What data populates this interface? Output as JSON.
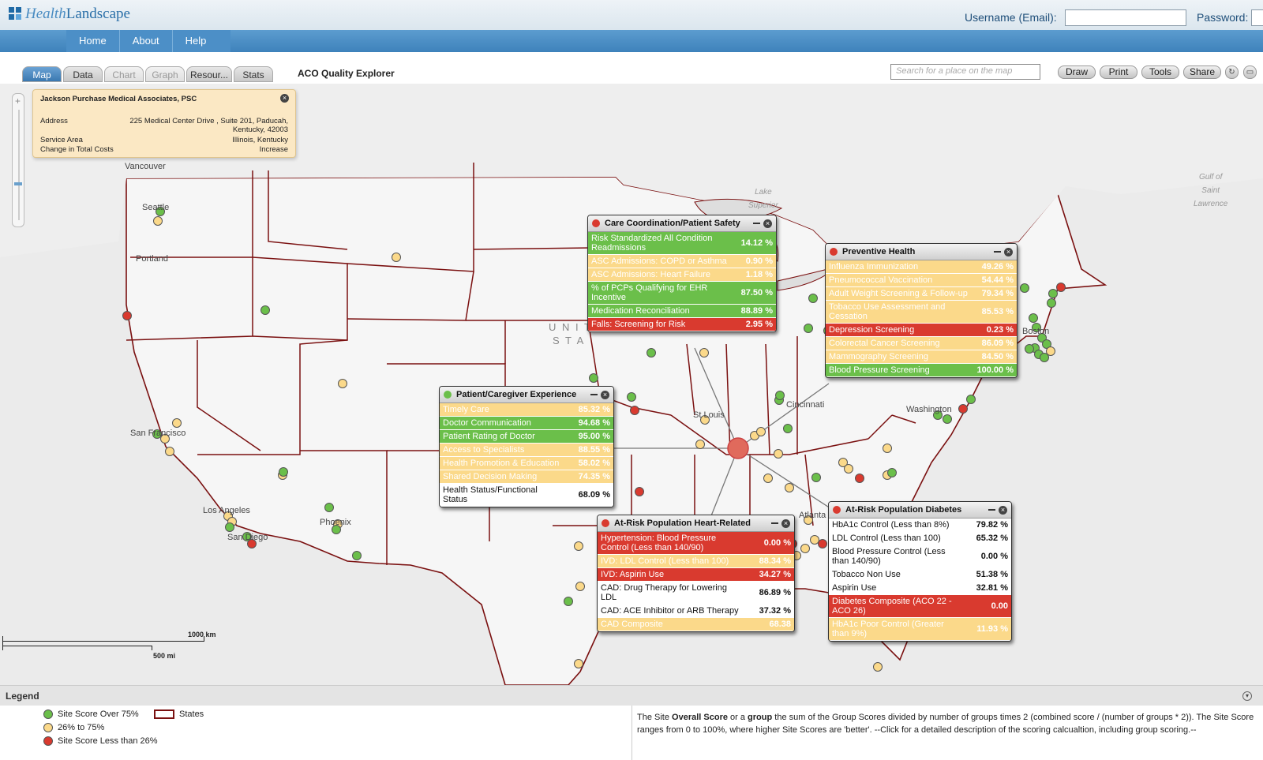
{
  "header": {
    "logo_text_a": "Health",
    "logo_text_b": "Landscape",
    "username_label": "Username (Email):",
    "password_label": "Password:"
  },
  "nav": [
    "Home",
    "About",
    "Help"
  ],
  "tabs": [
    {
      "label": "Map",
      "state": "active"
    },
    {
      "label": "Data",
      "state": "normal"
    },
    {
      "label": "Chart",
      "state": "disabled"
    },
    {
      "label": "Graph",
      "state": "disabled"
    },
    {
      "label": "Resour...",
      "state": "normal"
    },
    {
      "label": "Stats",
      "state": "normal"
    }
  ],
  "app_title": "ACO Quality Explorer",
  "search": {
    "placeholder": "Search for a place on the map"
  },
  "tools": [
    "Draw",
    "Print",
    "Tools",
    "Share"
  ],
  "map_labels": {
    "vancouver": "Vancouver",
    "seattle": "Seattle",
    "portland": "Portland",
    "sanfrancisco": "San Francisco",
    "losangeles": "Los Angeles",
    "sandiego": "San Diego",
    "phoenix": "Phoenix",
    "stlouis": "St Louis",
    "cincinnati": "Cincinnati",
    "washington": "Washington",
    "atlanta": "Atlanta",
    "boston": "Boston",
    "united": "U N I T",
    "states": "S T A"
  },
  "water_labels": {
    "lake": "Lake\nSuperior",
    "gulf": "Gulf of\nSaint\nLawrence"
  },
  "info_box": {
    "title": "Jackson Purchase Medical Associates, PSC",
    "rows": [
      {
        "k": "Address",
        "v": "225 Medical Center Drive , Suite 201, Paducah, Kentucky, 42003"
      },
      {
        "k": "Service Area",
        "v": "Illinois, Kentucky"
      },
      {
        "k": "Change in Total Costs",
        "v": "Increase"
      }
    ]
  },
  "panels": [
    {
      "id": "care",
      "title": "Care Coordination/Patient Safety",
      "dot": "#d93a2f",
      "rows": [
        {
          "m": "Risk Standardized All Condition Readmissions",
          "v": "14.12 %",
          "c": "g"
        },
        {
          "m": "ASC Admissions: COPD or Asthma",
          "v": "0.90 %",
          "c": "y"
        },
        {
          "m": "ASC Admissions: Heart Failure",
          "v": "1.18 %",
          "c": "y"
        },
        {
          "m": "% of PCPs Qualifying for EHR Incentive",
          "v": "87.50 %",
          "c": "g"
        },
        {
          "m": "Medication Reconciliation",
          "v": "88.89 %",
          "c": "g"
        },
        {
          "m": "Falls: Screening for Risk",
          "v": "2.95 %",
          "c": "r"
        }
      ]
    },
    {
      "id": "prev",
      "title": "Preventive Health",
      "dot": "#d93a2f",
      "rows": [
        {
          "m": "Influenza Immunization",
          "v": "49.26 %",
          "c": "y"
        },
        {
          "m": "Pneumococcal Vaccination",
          "v": "54.44 %",
          "c": "y"
        },
        {
          "m": "Adult Weight Screening & Follow-up",
          "v": "79.34 %",
          "c": "y"
        },
        {
          "m": "Tobacco Use Assessment and Cessation",
          "v": "85.53 %",
          "c": "y"
        },
        {
          "m": "Depression Screening",
          "v": "0.23 %",
          "c": "r"
        },
        {
          "m": "Colorectal Cancer Screening",
          "v": "86.09 %",
          "c": "y"
        },
        {
          "m": "Mammography Screening",
          "v": "84.50 %",
          "c": "y"
        },
        {
          "m": "Blood Pressure Screening",
          "v": "100.00 %",
          "c": "g"
        }
      ]
    },
    {
      "id": "pce",
      "title": "Patient/Caregiver Experience",
      "dot": "#6bbf4a",
      "rows": [
        {
          "m": "Timely Care",
          "v": "85.32 %",
          "c": "y"
        },
        {
          "m": "Doctor Communication",
          "v": "94.68 %",
          "c": "g"
        },
        {
          "m": "Patient Rating of Doctor",
          "v": "95.00 %",
          "c": "g"
        },
        {
          "m": "Access to Specialists",
          "v": "88.55 %",
          "c": "y"
        },
        {
          "m": "Health Promotion & Education",
          "v": "58.02 %",
          "c": "y"
        },
        {
          "m": "Shared Decision Making",
          "v": "74.35 %",
          "c": "y"
        },
        {
          "m": "Health Status/Functional Status",
          "v": "68.09 %",
          "c": "w"
        }
      ]
    },
    {
      "id": "heart",
      "title": "At-Risk Population Heart-Related",
      "dot": "#d93a2f",
      "rows": [
        {
          "m": "Hypertension: Blood Pressure Control (Less than 140/90)",
          "v": "0.00 %",
          "c": "r"
        },
        {
          "m": "IVD: LDL Control (Less than 100)",
          "v": "88.34 %",
          "c": "y"
        },
        {
          "m": "IVD: Aspirin Use",
          "v": "34.27 %",
          "c": "r"
        },
        {
          "m": "CAD: Drug Therapy for Lowering LDL",
          "v": "86.89 %",
          "c": "w"
        },
        {
          "m": "CAD: ACE Inhibitor or ARB Therapy",
          "v": "37.32 %",
          "c": "w"
        },
        {
          "m": "CAD Composite",
          "v": "68.38",
          "c": "y"
        }
      ]
    },
    {
      "id": "diab",
      "title": "At-Risk Population Diabetes",
      "dot": "#d93a2f",
      "rows": [
        {
          "m": "HbA1c Control (Less than 8%)",
          "v": "79.82 %",
          "c": "w"
        },
        {
          "m": "LDL Control (Less than 100)",
          "v": "65.32 %",
          "c": "w"
        },
        {
          "m": "Blood Pressure Control (Less than 140/90)",
          "v": "0.00 %",
          "c": "w"
        },
        {
          "m": "Tobacco Non Use",
          "v": "51.38 %",
          "c": "w"
        },
        {
          "m": "Aspirin Use",
          "v": "32.81 %",
          "c": "w"
        },
        {
          "m": "Diabetes Composite (ACO 22 - ACO 26)",
          "v": "0.00",
          "c": "r"
        },
        {
          "m": "HbA1c Poor Control (Greater than 9%)",
          "v": "11.93 %",
          "c": "y"
        }
      ]
    }
  ],
  "scale": {
    "km": "1000 km",
    "mi": "500 mi"
  },
  "legend": {
    "title": "Legend",
    "items": [
      {
        "label": "Site Score Over 75%",
        "color": "#6bbf4a"
      },
      {
        "label": "26% to 75%",
        "color": "#fbd98a"
      },
      {
        "label": "Site Score Less than 26%",
        "color": "#d93a2f"
      }
    ],
    "states_label": "States",
    "desc_a": "The Site ",
    "desc_b": "Overall Score",
    "desc_c": " or a ",
    "desc_d": "group",
    "desc_e": " the sum of the Group Scores divided by number of groups times 2 (combined score / (number of groups * 2)).  The Site Score ranges from 0 to 100%, where higher Site Scores are 'better'. --Click for a detailed description of the scoring calcualtion, including group scoring.--"
  },
  "colors": {
    "green": "#6bbf4a",
    "yellow": "#fbd98a",
    "red": "#d93a2f",
    "border": "#7a1010"
  }
}
